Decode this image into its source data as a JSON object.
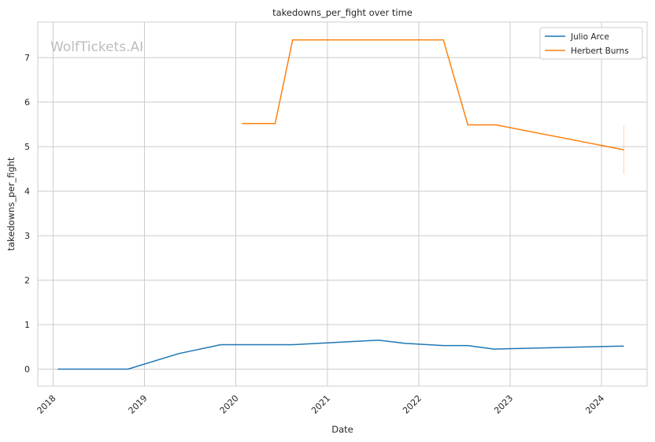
{
  "chart_data": {
    "type": "line",
    "title": "takedowns_per_fight over time",
    "xlabel": "Date",
    "ylabel": "takedowns_per_fight",
    "watermark": "WolfTickets.AI",
    "x_ticks": [
      "2018",
      "2019",
      "2020",
      "2021",
      "2022",
      "2023",
      "2024"
    ],
    "y_ticks": [
      "0",
      "1",
      "2",
      "3",
      "4",
      "5",
      "6",
      "7"
    ],
    "xlim": [
      "2017-11-01",
      "2024-07-01"
    ],
    "ylim": [
      -0.38,
      7.8
    ],
    "grid": true,
    "legend_position": "top-right",
    "series": [
      {
        "name": "Julio Arce",
        "color": "#1f77b4",
        "points": [
          {
            "x": "2018-01-20",
            "y": 0.0
          },
          {
            "x": "2018-10-27",
            "y": 0.0
          },
          {
            "x": "2019-05-18",
            "y": 0.35
          },
          {
            "x": "2019-11-02",
            "y": 0.55
          },
          {
            "x": "2020-08-15",
            "y": 0.55
          },
          {
            "x": "2021-07-24",
            "y": 0.65
          },
          {
            "x": "2021-11-06",
            "y": 0.58
          },
          {
            "x": "2022-04-09",
            "y": 0.53
          },
          {
            "x": "2022-07-16",
            "y": 0.53
          },
          {
            "x": "2022-10-29",
            "y": 0.45
          },
          {
            "x": "2024-03-30",
            "y": 0.52
          }
        ]
      },
      {
        "name": "Herbert Burns",
        "color": "#ff7f0e",
        "points": [
          {
            "x": "2020-01-25",
            "y": 5.52
          },
          {
            "x": "2020-06-06",
            "y": 5.52
          },
          {
            "x": "2020-08-15",
            "y": 7.4
          },
          {
            "x": "2022-04-09",
            "y": 7.4
          },
          {
            "x": "2022-07-16",
            "y": 5.49
          },
          {
            "x": "2022-11-05",
            "y": 5.49
          },
          {
            "x": "2024-03-30",
            "y": 4.93
          }
        ],
        "error_bar": {
          "x": "2024-03-30",
          "low": 4.38,
          "high": 5.48
        }
      }
    ]
  }
}
